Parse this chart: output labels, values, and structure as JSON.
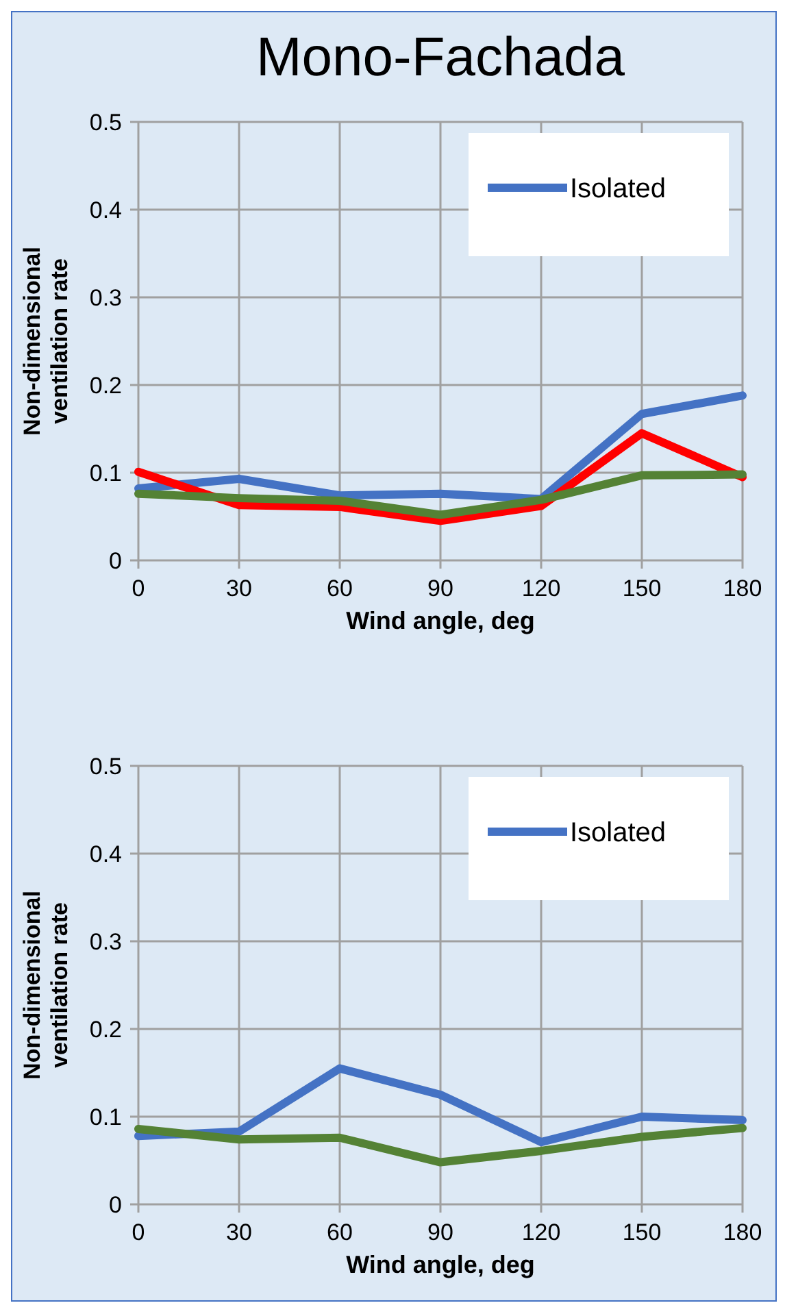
{
  "chart_data": [
    {
      "type": "line",
      "title": "Mono-Fachada",
      "xlabel": "Wind angle, deg",
      "ylabel": "Non-dimensional ventilation rate",
      "x": [
        0,
        30,
        60,
        90,
        120,
        150,
        180
      ],
      "xlim": [
        0,
        180
      ],
      "xticks": [
        0,
        30,
        60,
        90,
        120,
        150,
        180
      ],
      "ylim": [
        0,
        0.5
      ],
      "yticks": [
        0,
        0.1,
        0.2,
        0.3,
        0.4,
        0.5
      ],
      "grid": true,
      "legend": "top right",
      "marker": "none",
      "series": [
        {
          "name": "Isolated",
          "color": "#4472c4",
          "values": [
            0.082,
            0.093,
            0.074,
            0.076,
            0.07,
            0.167,
            0.188
          ]
        },
        {
          "color": "#ff0000",
          "values": [
            0.101,
            0.063,
            0.061,
            0.045,
            0.062,
            0.145,
            0.095
          ]
        },
        {
          "color": "#548235",
          "values": [
            0.076,
            0.071,
            0.068,
            0.052,
            0.069,
            0.097,
            0.098
          ]
        }
      ]
    },
    {
      "type": "line",
      "xlabel": "Wind angle, deg",
      "ylabel": "Non-dimensional ventilation rate",
      "x": [
        0,
        30,
        60,
        90,
        120,
        150,
        180
      ],
      "xlim": [
        0,
        180
      ],
      "xticks": [
        0,
        30,
        60,
        90,
        120,
        150,
        180
      ],
      "ylim": [
        0,
        0.5
      ],
      "yticks": [
        0,
        0.1,
        0.2,
        0.3,
        0.4,
        0.5
      ],
      "grid": true,
      "legend": "top right",
      "marker": "none",
      "series": [
        {
          "name": "Isolated",
          "color": "#4472c4",
          "values": [
            0.078,
            0.083,
            0.155,
            0.125,
            0.071,
            0.1,
            0.096
          ]
        },
        {
          "color": "#548235",
          "values": [
            0.086,
            0.074,
            0.076,
            0.048,
            0.061,
            0.077,
            0.087
          ]
        }
      ]
    }
  ]
}
